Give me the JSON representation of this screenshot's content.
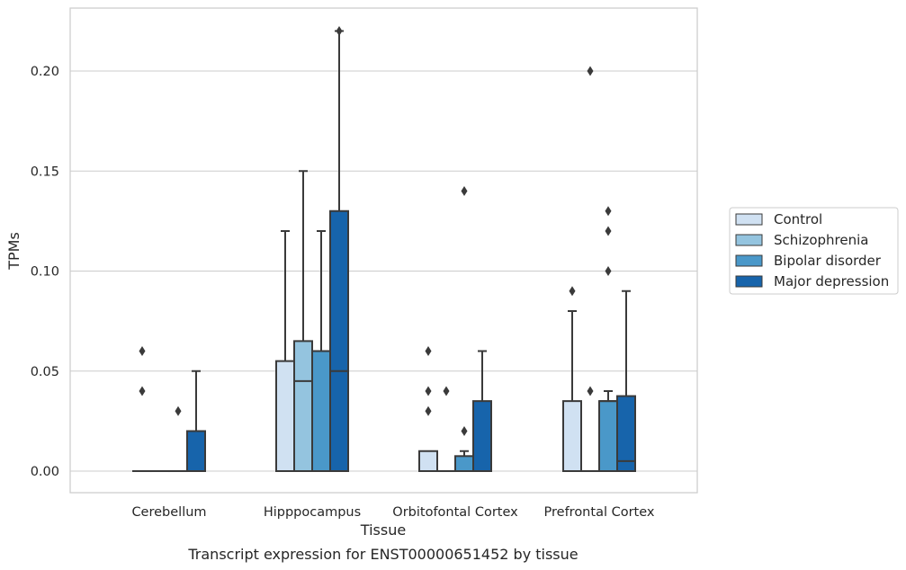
{
  "chart_data": {
    "type": "box",
    "title": "",
    "caption": "Transcript expression for ENST00000651452 by tissue",
    "xlabel": "Tissue",
    "ylabel": "TPMs",
    "ylim": [
      -0.0105,
      0.2315
    ],
    "yticks": [
      0.0,
      0.05,
      0.1,
      0.15,
      0.2
    ],
    "ytick_labels": [
      "0.00",
      "0.05",
      "0.10",
      "0.15",
      "0.20"
    ],
    "grid": true,
    "legend_position": "right",
    "categories": [
      "Cerebellum",
      "Hipppocampus",
      "Orbitofontal Cortex",
      "Prefrontal Cortex"
    ],
    "series": [
      {
        "name": "Control",
        "color": "#d0e1f2",
        "boxes": [
          {
            "q1": 0.0,
            "median": 0.0,
            "q3": 0.0,
            "whisker_low": 0.0,
            "whisker_high": 0.0,
            "outliers": [
              0.06,
              0.04
            ]
          },
          {
            "q1": 0.0,
            "median": 0.0,
            "q3": 0.055,
            "whisker_low": 0.0,
            "whisker_high": 0.12,
            "outliers": []
          },
          {
            "q1": 0.0,
            "median": 0.0,
            "q3": 0.01,
            "whisker_low": 0.0,
            "whisker_high": 0.01,
            "outliers": [
              0.06,
              0.04,
              0.03
            ]
          },
          {
            "q1": 0.0,
            "median": 0.0,
            "q3": 0.035,
            "whisker_low": 0.0,
            "whisker_high": 0.08,
            "outliers": [
              0.09
            ]
          }
        ]
      },
      {
        "name": "Schizophrenia",
        "color": "#94c4df",
        "boxes": [
          {
            "q1": 0.0,
            "median": 0.0,
            "q3": 0.0,
            "whisker_low": 0.0,
            "whisker_high": 0.0,
            "outliers": []
          },
          {
            "q1": 0.0,
            "median": 0.045,
            "q3": 0.065,
            "whisker_low": 0.0,
            "whisker_high": 0.15,
            "outliers": []
          },
          {
            "q1": 0.0,
            "median": 0.0,
            "q3": 0.0,
            "whisker_low": 0.0,
            "whisker_high": 0.0,
            "outliers": [
              0.04
            ]
          },
          {
            "q1": 0.0,
            "median": 0.0,
            "q3": 0.0,
            "whisker_low": 0.0,
            "whisker_high": 0.0,
            "outliers": [
              0.2,
              0.04
            ]
          }
        ]
      },
      {
        "name": "Bipolar disorder",
        "color": "#4a98c9",
        "boxes": [
          {
            "q1": 0.0,
            "median": 0.0,
            "q3": 0.0,
            "whisker_low": 0.0,
            "whisker_high": 0.0,
            "outliers": [
              0.03
            ]
          },
          {
            "q1": 0.0,
            "median": 0.06,
            "q3": 0.06,
            "whisker_low": 0.0,
            "whisker_high": 0.12,
            "outliers": []
          },
          {
            "q1": 0.0,
            "median": 0.0,
            "q3": 0.0075,
            "whisker_low": 0.0,
            "whisker_high": 0.01,
            "outliers": [
              0.14,
              0.02
            ]
          },
          {
            "q1": 0.0,
            "median": 0.035,
            "q3": 0.035,
            "whisker_low": 0.0,
            "whisker_high": 0.04,
            "outliers": [
              0.13,
              0.12,
              0.1
            ]
          }
        ]
      },
      {
        "name": "Major depression",
        "color": "#1764ab",
        "boxes": [
          {
            "q1": 0.0,
            "median": 0.0,
            "q3": 0.02,
            "whisker_low": 0.0,
            "whisker_high": 0.05,
            "outliers": []
          },
          {
            "q1": 0.0,
            "median": 0.05,
            "q3": 0.13,
            "whisker_low": 0.0,
            "whisker_high": 0.22,
            "outliers": [
              0.22
            ]
          },
          {
            "q1": 0.0,
            "median": 0.0,
            "q3": 0.035,
            "whisker_low": 0.0,
            "whisker_high": 0.06,
            "outliers": []
          },
          {
            "q1": 0.0,
            "median": 0.005,
            "q3": 0.0375,
            "whisker_low": 0.0,
            "whisker_high": 0.09,
            "outliers": []
          }
        ]
      }
    ]
  }
}
